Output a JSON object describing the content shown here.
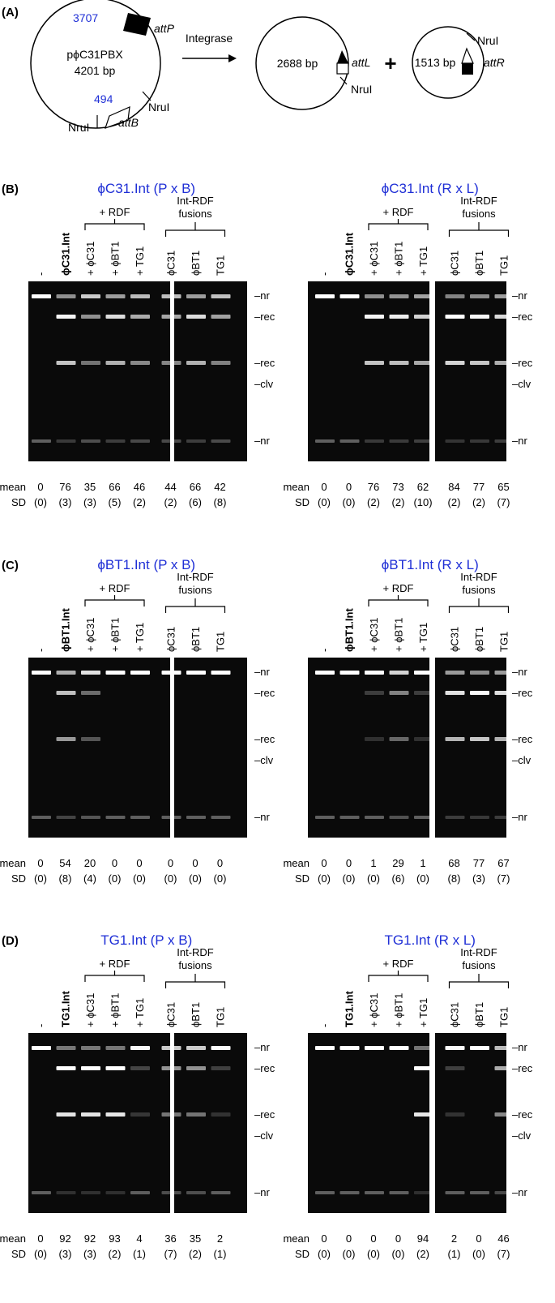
{
  "colors": {
    "accent_blue": "#1f2fd6",
    "gel": "#0a0a0a",
    "band": "#ffffff"
  },
  "panelA": {
    "label": "(A)",
    "plasmid_name": "pϕC31PBX",
    "plasmid_size": "4201 bp",
    "pos_top": "3707",
    "pos_bottom": "494",
    "attP": "attP",
    "attB": "attB",
    "nrui_left": "NruI",
    "nrui_right": "NruI",
    "arrow_label": "Integrase",
    "product1_size": "2688 bp",
    "attL": "attL",
    "nrui_p1": "NruI",
    "plus": "+",
    "product2_size": "1513 bp",
    "attR": "attR",
    "nrui_p2": "NruI"
  },
  "common": {
    "rdf": "+ RDF",
    "fusions_line1": "Int-RDF",
    "fusions_line2": "fusions",
    "mean": "mean",
    "sd": "SD",
    "band_nr": "–nr",
    "band_rec": "–rec",
    "band_clv": "–clv"
  },
  "panels": [
    {
      "label": "(B)",
      "left": {
        "title": "ϕC31.Int (P x B)",
        "lanes": [
          "-",
          "ϕC31.Int",
          "+ ϕC31",
          "+ ϕBT1",
          "+ TG1",
          "ϕC31",
          "ϕBT1",
          "TG1"
        ],
        "mean": [
          "0",
          "76",
          "35",
          "66",
          "46",
          "44",
          "66",
          "42"
        ],
        "sd": [
          "(0)",
          "(3)",
          "(3)",
          "(5)",
          "(2)",
          "(2)",
          "(6)",
          "(8)"
        ]
      },
      "right": {
        "title": "ϕC31.Int (R x L)",
        "lanes": [
          "-",
          "ϕC31.Int",
          "+ ϕC31",
          "+ ϕBT1",
          "+ TG1",
          "ϕC31",
          "ϕBT1",
          "TG1"
        ],
        "mean": [
          "0",
          "0",
          "76",
          "73",
          "62",
          "84",
          "77",
          "65"
        ],
        "sd": [
          "(0)",
          "(0)",
          "(2)",
          "(2)",
          "(10)",
          "(2)",
          "(2)",
          "(7)"
        ]
      }
    },
    {
      "label": "(C)",
      "left": {
        "title": "ϕBT1.Int (P x B)",
        "lanes": [
          "-",
          "ϕBT1.Int",
          "+ ϕC31",
          "+ ϕBT1",
          "+ TG1",
          "ϕC31",
          "ϕBT1",
          "TG1"
        ],
        "mean": [
          "0",
          "54",
          "20",
          "0",
          "0",
          "0",
          "0",
          "0"
        ],
        "sd": [
          "(0)",
          "(8)",
          "(4)",
          "(0)",
          "(0)",
          "(0)",
          "(0)",
          "(0)"
        ]
      },
      "right": {
        "title": "ϕBT1.Int (R x L)",
        "lanes": [
          "-",
          "ϕBT1.Int",
          "+ ϕC31",
          "+ ϕBT1",
          "+ TG1",
          "ϕC31",
          "ϕBT1",
          "TG1"
        ],
        "mean": [
          "0",
          "0",
          "1",
          "29",
          "1",
          "68",
          "77",
          "67"
        ],
        "sd": [
          "(0)",
          "(0)",
          "(0)",
          "(6)",
          "(0)",
          "(8)",
          "(3)",
          "(7)"
        ]
      }
    },
    {
      "label": "(D)",
      "left": {
        "title": "TG1.Int (P x B)",
        "lanes": [
          "-",
          "TG1.Int",
          "+ ϕC31",
          "+ ϕBT1",
          "+ TG1",
          "ϕC31",
          "ϕBT1",
          "TG1"
        ],
        "mean": [
          "0",
          "92",
          "92",
          "93",
          "4",
          "36",
          "35",
          "2"
        ],
        "sd": [
          "(0)",
          "(3)",
          "(3)",
          "(2)",
          "(1)",
          "(7)",
          "(2)",
          "(1)"
        ]
      },
      "right": {
        "title": "TG1.Int (R x L)",
        "lanes": [
          "-",
          "TG1.Int",
          "+ ϕC31",
          "+ ϕBT1",
          "+ TG1",
          "ϕC31",
          "ϕBT1",
          "TG1"
        ],
        "mean": [
          "0",
          "0",
          "0",
          "0",
          "94",
          "2",
          "0",
          "46"
        ],
        "sd": [
          "(0)",
          "(0)",
          "(0)",
          "(0)",
          "(2)",
          "(1)",
          "(0)",
          "(7)"
        ]
      }
    }
  ]
}
